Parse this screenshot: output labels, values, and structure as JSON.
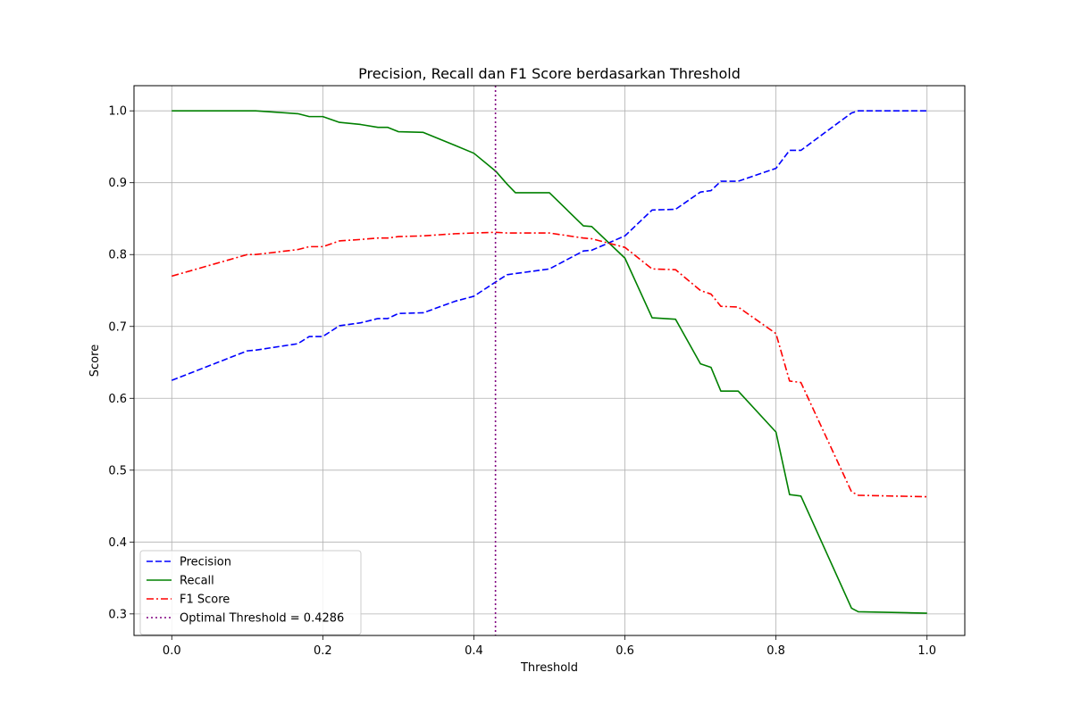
{
  "chart_data": {
    "type": "line",
    "title": "Precision, Recall dan F1 Score berdasarkan Threshold",
    "xlabel": "Threshold",
    "ylabel": "Score",
    "xlim": [
      -0.05,
      1.05
    ],
    "ylim": [
      0.27,
      1.035
    ],
    "xticks": [
      0.0,
      0.2,
      0.4,
      0.6,
      0.8,
      1.0
    ],
    "xtick_labels": [
      "0.0",
      "0.2",
      "0.4",
      "0.6",
      "0.8",
      "1.0"
    ],
    "yticks": [
      0.3,
      0.4,
      0.5,
      0.6,
      0.7,
      0.8,
      0.9,
      1.0
    ],
    "ytick_labels": [
      "0.3",
      "0.4",
      "0.5",
      "0.6",
      "0.7",
      "0.8",
      "0.9",
      "1.0"
    ],
    "grid": true,
    "legend_position": "lower-left",
    "series": [
      {
        "name": "Precision",
        "color": "#0000ff",
        "style": "dashed",
        "x": [
          0.0,
          0.1,
          0.111,
          0.167,
          0.182,
          0.2,
          0.222,
          0.25,
          0.273,
          0.286,
          0.3,
          0.333,
          0.375,
          0.4,
          0.429,
          0.444,
          0.5,
          0.545,
          0.556,
          0.6,
          0.636,
          0.667,
          0.7,
          0.714,
          0.727,
          0.75,
          0.8,
          0.818,
          0.833,
          0.9,
          0.909,
          1.0
        ],
        "values": [
          0.625,
          0.666,
          0.667,
          0.676,
          0.686,
          0.686,
          0.701,
          0.705,
          0.711,
          0.711,
          0.718,
          0.719,
          0.735,
          0.742,
          0.762,
          0.772,
          0.78,
          0.805,
          0.806,
          0.826,
          0.862,
          0.863,
          0.887,
          0.889,
          0.902,
          0.902,
          0.92,
          0.945,
          0.945,
          0.997,
          1.0,
          1.0
        ]
      },
      {
        "name": "Recall",
        "color": "#008000",
        "style": "solid",
        "x": [
          0.0,
          0.1,
          0.111,
          0.167,
          0.182,
          0.2,
          0.222,
          0.25,
          0.273,
          0.286,
          0.3,
          0.333,
          0.375,
          0.4,
          0.429,
          0.444,
          0.455,
          0.5,
          0.545,
          0.556,
          0.6,
          0.636,
          0.667,
          0.7,
          0.714,
          0.727,
          0.75,
          0.8,
          0.818,
          0.833,
          0.9,
          0.909,
          1.0
        ],
        "values": [
          1.0,
          1.0,
          1.0,
          0.996,
          0.992,
          0.992,
          0.984,
          0.981,
          0.977,
          0.977,
          0.971,
          0.97,
          0.952,
          0.941,
          0.916,
          0.898,
          0.886,
          0.886,
          0.84,
          0.839,
          0.795,
          0.712,
          0.71,
          0.648,
          0.643,
          0.61,
          0.61,
          0.553,
          0.466,
          0.464,
          0.308,
          0.303,
          0.301
        ]
      },
      {
        "name": "F1 Score",
        "color": "#ff0000",
        "style": "dashdot",
        "x": [
          0.0,
          0.1,
          0.111,
          0.167,
          0.182,
          0.2,
          0.222,
          0.25,
          0.273,
          0.286,
          0.3,
          0.333,
          0.375,
          0.4,
          0.429,
          0.444,
          0.5,
          0.545,
          0.556,
          0.6,
          0.636,
          0.667,
          0.7,
          0.714,
          0.727,
          0.75,
          0.8,
          0.818,
          0.833,
          0.9,
          0.909,
          1.0
        ],
        "values": [
          0.77,
          0.8,
          0.8,
          0.807,
          0.811,
          0.811,
          0.819,
          0.821,
          0.823,
          0.823,
          0.825,
          0.826,
          0.829,
          0.83,
          0.831,
          0.83,
          0.83,
          0.823,
          0.822,
          0.81,
          0.78,
          0.779,
          0.75,
          0.745,
          0.728,
          0.727,
          0.69,
          0.624,
          0.622,
          0.47,
          0.465,
          0.463
        ]
      }
    ],
    "annotations": [
      {
        "type": "vline",
        "name": "Optimal Threshold = 0.4286",
        "x": 0.4286,
        "color": "#800080",
        "style": "dotted"
      }
    ]
  }
}
